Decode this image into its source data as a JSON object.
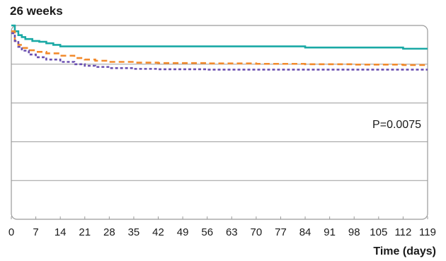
{
  "chart_data": {
    "type": "line",
    "title": "26 weeks",
    "xlabel": "Time (days)",
    "ylabel": "",
    "annotation": "P=0.0075",
    "xlim": [
      0,
      119
    ],
    "ylim": [
      0.5,
      1.0
    ],
    "x_ticks": [
      0,
      7,
      14,
      21,
      28,
      35,
      42,
      49,
      56,
      63,
      70,
      77,
      84,
      91,
      98,
      105,
      112,
      119
    ],
    "grid": "horizontal",
    "series": [
      {
        "color": "#1aa9a5",
        "style": "solid",
        "x": [
          0,
          1,
          2,
          3,
          4,
          6,
          8,
          10,
          12,
          14,
          84,
          112,
          119
        ],
        "y": [
          1.0,
          0.985,
          0.975,
          0.97,
          0.965,
          0.96,
          0.958,
          0.954,
          0.95,
          0.946,
          0.943,
          0.94,
          0.94
        ]
      },
      {
        "color": "#f28a2c",
        "style": "dashed",
        "x": [
          0,
          1,
          2,
          3,
          5,
          7,
          10,
          14,
          18,
          21,
          24,
          28,
          35,
          42,
          56,
          70,
          84,
          98,
          112,
          119
        ],
        "y": [
          0.985,
          0.96,
          0.95,
          0.942,
          0.936,
          0.932,
          0.928,
          0.922,
          0.916,
          0.912,
          0.909,
          0.906,
          0.904,
          0.903,
          0.902,
          0.901,
          0.9,
          0.899,
          0.898,
          0.898
        ]
      },
      {
        "color": "#6a4fb0",
        "style": "dotted",
        "x": [
          0,
          1,
          2,
          3,
          5,
          7,
          10,
          14,
          18,
          21,
          24,
          28,
          35,
          42,
          56,
          70,
          84,
          98,
          112,
          119
        ],
        "y": [
          0.98,
          0.96,
          0.945,
          0.935,
          0.925,
          0.918,
          0.912,
          0.906,
          0.9,
          0.896,
          0.893,
          0.89,
          0.888,
          0.887,
          0.886,
          0.886,
          0.886,
          0.886,
          0.886,
          0.886
        ]
      }
    ]
  }
}
